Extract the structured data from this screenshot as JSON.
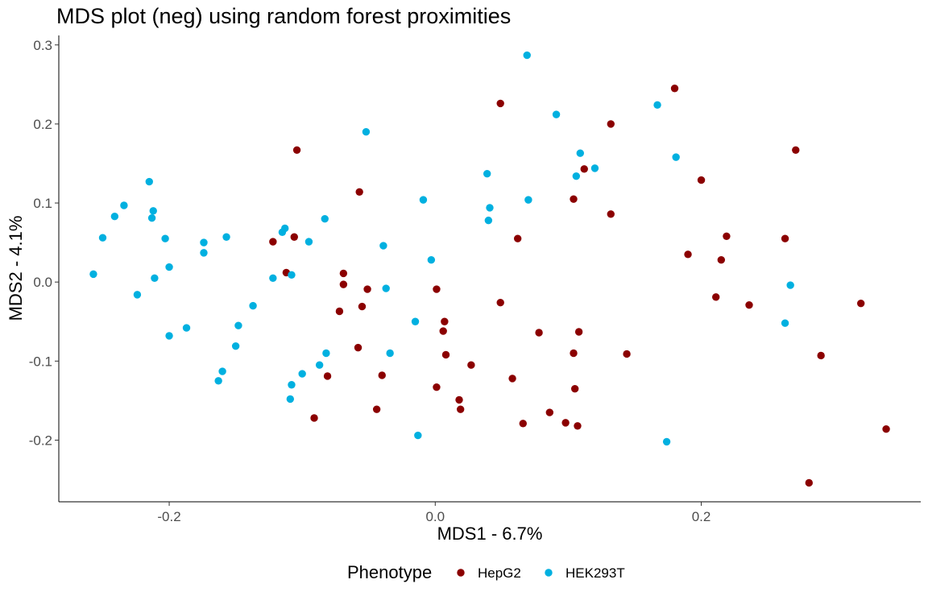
{
  "chart_data": {
    "type": "scatter",
    "title": "MDS plot (neg) using random forest proximities",
    "xlabel": "MDS1 - 6.7%",
    "ylabel": "MDS2 - 4.1%",
    "xlim": [
      -0.283,
      0.365
    ],
    "ylim": [
      -0.278,
      0.312
    ],
    "x_ticks": [
      -0.2,
      0.0,
      0.2
    ],
    "x_tick_labels": [
      "-0.2",
      "0.0",
      "0.2"
    ],
    "y_ticks": [
      -0.2,
      -0.1,
      0.0,
      0.1,
      0.2,
      0.3
    ],
    "y_tick_labels": [
      "-0.2",
      "-0.1",
      "0.0",
      "0.1",
      "0.2",
      "0.3"
    ],
    "grid": false,
    "legend": {
      "title": "Phenotype",
      "position": "bottom"
    },
    "series": [
      {
        "name": "HepG2",
        "color": "#8b0000",
        "points": [
          [
            0.049,
            0.226
          ],
          [
            0.18,
            0.245
          ],
          [
            0.132,
            0.2
          ],
          [
            0.271,
            0.167
          ],
          [
            -0.104,
            0.167
          ],
          [
            0.2,
            0.129
          ],
          [
            0.112,
            0.143
          ],
          [
            -0.057,
            0.114
          ],
          [
            0.104,
            0.105
          ],
          [
            0.132,
            0.086
          ],
          [
            0.062,
            0.055
          ],
          [
            0.263,
            0.055
          ],
          [
            0.219,
            0.058
          ],
          [
            -0.122,
            0.051
          ],
          [
            -0.106,
            0.057
          ],
          [
            0.19,
            0.035
          ],
          [
            0.215,
            0.028
          ],
          [
            -0.112,
            0.012
          ],
          [
            -0.069,
            0.011
          ],
          [
            -0.069,
            -0.003
          ],
          [
            -0.051,
            -0.009
          ],
          [
            0.001,
            -0.009
          ],
          [
            0.211,
            -0.019
          ],
          [
            0.049,
            -0.026
          ],
          [
            0.236,
            -0.029
          ],
          [
            0.32,
            -0.027
          ],
          [
            -0.055,
            -0.031
          ],
          [
            -0.072,
            -0.037
          ],
          [
            0.007,
            -0.05
          ],
          [
            0.006,
            -0.062
          ],
          [
            0.078,
            -0.064
          ],
          [
            0.108,
            -0.063
          ],
          [
            -0.058,
            -0.083
          ],
          [
            0.008,
            -0.092
          ],
          [
            0.104,
            -0.09
          ],
          [
            0.144,
            -0.091
          ],
          [
            0.29,
            -0.093
          ],
          [
            0.027,
            -0.105
          ],
          [
            -0.04,
            -0.118
          ],
          [
            -0.081,
            -0.119
          ],
          [
            0.058,
            -0.122
          ],
          [
            0.001,
            -0.133
          ],
          [
            0.105,
            -0.135
          ],
          [
            0.018,
            -0.149
          ],
          [
            -0.044,
            -0.161
          ],
          [
            0.019,
            -0.161
          ],
          [
            0.086,
            -0.165
          ],
          [
            -0.091,
            -0.172
          ],
          [
            0.066,
            -0.179
          ],
          [
            0.098,
            -0.178
          ],
          [
            0.107,
            -0.182
          ],
          [
            0.339,
            -0.186
          ],
          [
            0.281,
            -0.254
          ]
        ]
      },
      {
        "name": "HEK293T",
        "color": "#00b0e0",
        "points": [
          [
            0.069,
            0.287
          ],
          [
            0.167,
            0.224
          ],
          [
            0.091,
            0.212
          ],
          [
            -0.052,
            0.19
          ],
          [
            0.109,
            0.163
          ],
          [
            0.181,
            0.158
          ],
          [
            0.12,
            0.144
          ],
          [
            0.039,
            0.137
          ],
          [
            0.106,
            0.134
          ],
          [
            -0.215,
            0.127
          ],
          [
            -0.009,
            0.104
          ],
          [
            0.07,
            0.104
          ],
          [
            -0.234,
            0.097
          ],
          [
            0.041,
            0.094
          ],
          [
            -0.212,
            0.09
          ],
          [
            -0.241,
            0.083
          ],
          [
            -0.213,
            0.081
          ],
          [
            -0.083,
            0.08
          ],
          [
            0.04,
            0.078
          ],
          [
            -0.113,
            0.068
          ],
          [
            -0.115,
            0.063
          ],
          [
            -0.25,
            0.056
          ],
          [
            -0.203,
            0.055
          ],
          [
            -0.157,
            0.057
          ],
          [
            -0.174,
            0.05
          ],
          [
            -0.095,
            0.051
          ],
          [
            -0.039,
            0.046
          ],
          [
            -0.174,
            0.037
          ],
          [
            -0.003,
            0.028
          ],
          [
            -0.2,
            0.019
          ],
          [
            -0.257,
            0.01
          ],
          [
            -0.108,
            0.009
          ],
          [
            -0.122,
            0.005
          ],
          [
            -0.211,
            0.005
          ],
          [
            0.267,
            -0.004
          ],
          [
            -0.037,
            -0.008
          ],
          [
            -0.224,
            -0.016
          ],
          [
            -0.137,
            -0.03
          ],
          [
            -0.015,
            -0.05
          ],
          [
            0.263,
            -0.052
          ],
          [
            -0.148,
            -0.055
          ],
          [
            -0.187,
            -0.058
          ],
          [
            -0.2,
            -0.068
          ],
          [
            -0.15,
            -0.081
          ],
          [
            -0.082,
            -0.09
          ],
          [
            -0.034,
            -0.09
          ],
          [
            -0.087,
            -0.105
          ],
          [
            -0.16,
            -0.113
          ],
          [
            -0.1,
            -0.116
          ],
          [
            -0.163,
            -0.125
          ],
          [
            -0.108,
            -0.13
          ],
          [
            -0.109,
            -0.148
          ],
          [
            -0.013,
            -0.194
          ],
          [
            0.174,
            -0.202
          ]
        ]
      }
    ]
  }
}
